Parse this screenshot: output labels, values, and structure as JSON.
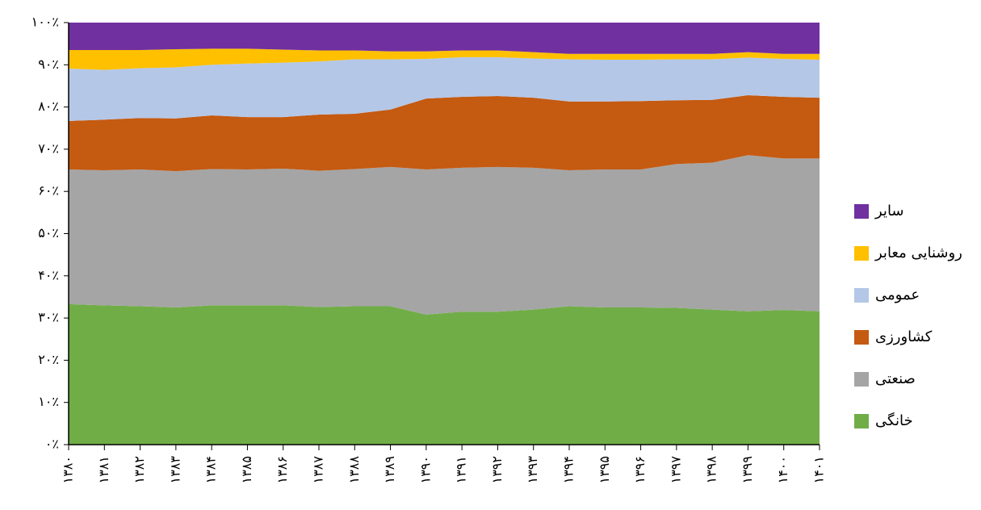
{
  "chart_data": {
    "type": "stacked_area",
    "categories": [
      "۱۳۸۰",
      "۱۳۸۱",
      "۱۳۸۲",
      "۱۳۸۳",
      "۱۳۸۴",
      "۱۳۸۵",
      "۱۳۸۶",
      "۱۳۸۷",
      "۱۳۸۸",
      "۱۳۸۹",
      "۱۳۹۰",
      "۱۳۹۱",
      "۱۳۹۲",
      "۱۳۹۳",
      "۱۳۹۴",
      "۱۳۹۵",
      "۱۳۹۶",
      "۱۳۹۷",
      "۱۳۹۸",
      "۱۳۹۹",
      "۱۴۰۰",
      "۱۴۰۱"
    ],
    "series": [
      {
        "name": "خانگی",
        "color": "#70ad47",
        "values": [
          33.3,
          33,
          32.8,
          32.5,
          33,
          33,
          33,
          32.6,
          32.8,
          32.8,
          30.8,
          31.5,
          31.5,
          32,
          32.8,
          32.5,
          32.5,
          32.4,
          32,
          31.6,
          31.9,
          31.6
        ]
      },
      {
        "name": "صنعتی",
        "color": "#a5a5a5",
        "values": [
          31.9,
          32,
          32.4,
          32.3,
          32.3,
          32.2,
          32.4,
          32.3,
          32.5,
          33,
          34.4,
          34.1,
          34.3,
          33.6,
          32.2,
          32.7,
          32.7,
          34.1,
          34.8,
          37,
          35.9,
          36.2
        ]
      },
      {
        "name": "کشاورزی",
        "color": "#c55a11",
        "values": [
          11.5,
          12,
          12.2,
          12.5,
          12.7,
          12.4,
          12.2,
          13.3,
          13.1,
          13.6,
          16.8,
          16.8,
          16.8,
          16.6,
          16.3,
          16.1,
          16.2,
          15.1,
          14.9,
          14.2,
          14.6,
          14.4
        ]
      },
      {
        "name": "عمومی",
        "color": "#b4c7e7",
        "values": [
          12.4,
          11.8,
          11.8,
          12.1,
          12,
          12.7,
          12.9,
          12.6,
          12.9,
          11.9,
          9.4,
          9.4,
          9.2,
          9.3,
          10,
          9.9,
          9.8,
          9.7,
          9.6,
          8.9,
          9,
          9
        ]
      },
      {
        "name": "روشنایی معابر",
        "color": "#ffc000",
        "values": [
          4.4,
          4.7,
          4.3,
          4.3,
          3.8,
          3.5,
          3.1,
          2.6,
          2.1,
          1.9,
          1.8,
          1.6,
          1.6,
          1.5,
          1.3,
          1.4,
          1.4,
          1.3,
          1.3,
          1.3,
          1.2,
          1.4
        ]
      },
      {
        "name": "سایر",
        "color": "#7030a0",
        "values": [
          6.5,
          6.5,
          6.5,
          6.3,
          6.2,
          6.2,
          6.4,
          6.6,
          6.6,
          6.8,
          6.8,
          6.6,
          6.6,
          7,
          7.4,
          7.4,
          7.4,
          7.4,
          7.4,
          7,
          7.4,
          7.4
        ]
      }
    ],
    "ylim": [
      0,
      100
    ],
    "yticks": [
      {
        "value": 0,
        "label": "۰٪"
      },
      {
        "value": 10,
        "label": "۱۰٪"
      },
      {
        "value": 20,
        "label": "۲۰٪"
      },
      {
        "value": 30,
        "label": "۳۰٪"
      },
      {
        "value": 40,
        "label": "۴۰٪"
      },
      {
        "value": 50,
        "label": "۵۰٪"
      },
      {
        "value": 60,
        "label": "۶۰٪"
      },
      {
        "value": 70,
        "label": "۷۰٪"
      },
      {
        "value": 80,
        "label": "۸۰٪"
      },
      {
        "value": 90,
        "label": "۹۰٪"
      },
      {
        "value": 100,
        "label": "۱۰۰٪"
      }
    ],
    "grid": false,
    "legend": "right"
  }
}
